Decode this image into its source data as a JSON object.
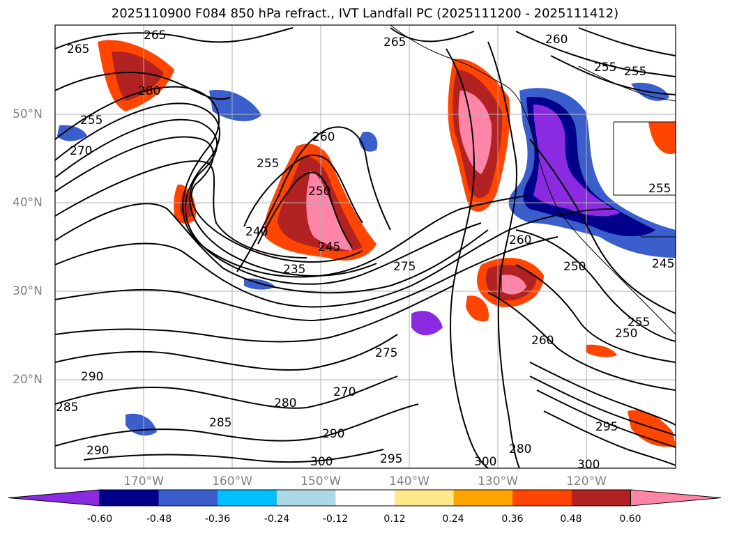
{
  "title": "2025110900 F084 850 hPa refract., IVT Landfall PC (2025111200 - 2025111412)",
  "map": {
    "lat_ticks": [
      "50°N",
      "40°N",
      "30°N",
      "20°N"
    ],
    "lon_ticks": [
      "170°W",
      "160°W",
      "150°W",
      "140°W",
      "130°W",
      "120°W"
    ],
    "grid": true,
    "contour_labels": [
      {
        "text": "265"
      },
      {
        "text": "265"
      },
      {
        "text": "265"
      },
      {
        "text": "260"
      },
      {
        "text": "255"
      },
      {
        "text": "255"
      },
      {
        "text": "280"
      },
      {
        "text": "255"
      },
      {
        "text": "270"
      },
      {
        "text": "260"
      },
      {
        "text": "255"
      },
      {
        "text": "250"
      },
      {
        "text": "240"
      },
      {
        "text": "245"
      },
      {
        "text": "235"
      },
      {
        "text": "275"
      },
      {
        "text": "260"
      },
      {
        "text": "250"
      },
      {
        "text": "245"
      },
      {
        "text": "255"
      },
      {
        "text": "250"
      },
      {
        "text": "260"
      },
      {
        "text": "275"
      },
      {
        "text": "270"
      },
      {
        "text": "280"
      },
      {
        "text": "285"
      },
      {
        "text": "290"
      },
      {
        "text": "290"
      },
      {
        "text": "285"
      },
      {
        "text": "290"
      },
      {
        "text": "295"
      },
      {
        "text": "300"
      },
      {
        "text": "300"
      },
      {
        "text": "295"
      },
      {
        "text": "300"
      },
      {
        "text": "280"
      },
      {
        "text": "255"
      }
    ]
  },
  "colorbar": {
    "colors": [
      "#8a2be2",
      "#00008b",
      "#3a5fcd",
      "#00bfff",
      "#add8e6",
      "#ffffff",
      "#ffe98a",
      "#ffa500",
      "#ff4500",
      "#b22222",
      "#ff85a8"
    ],
    "labels": [
      "-0.60",
      "-0.48",
      "-0.36",
      "-0.24",
      "-0.12",
      "0.12",
      "0.24",
      "0.36",
      "0.48",
      "0.60"
    ]
  }
}
